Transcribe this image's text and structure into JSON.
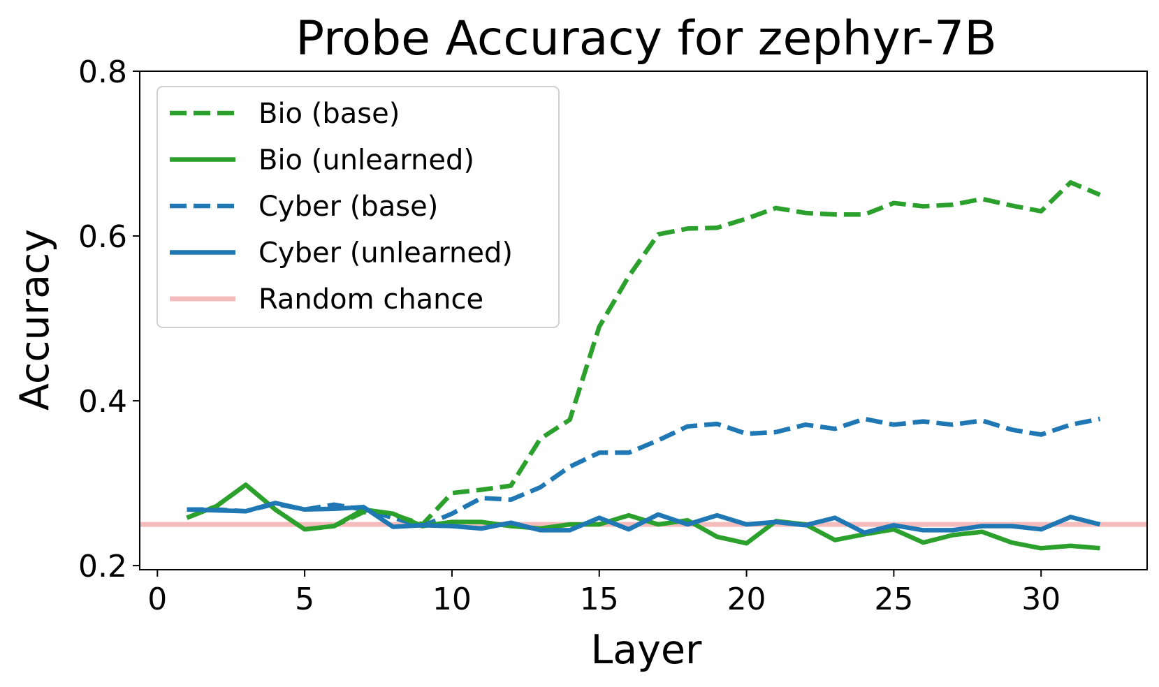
{
  "chart_data": {
    "type": "line",
    "title": "Probe Accuracy for zephyr-7B",
    "xlabel": "Layer",
    "ylabel": "Accuracy",
    "xlim": [
      -0.6,
      33.6
    ],
    "ylim": [
      0.195,
      0.8
    ],
    "xticks": [
      0,
      5,
      10,
      15,
      20,
      25,
      30
    ],
    "yticks": [
      0.2,
      0.4,
      0.6,
      0.8
    ],
    "x_tick_labels": [
      "0",
      "5",
      "10",
      "15",
      "20",
      "25",
      "30"
    ],
    "y_tick_labels": [
      "0.2",
      "0.4",
      "0.6",
      "0.8"
    ],
    "grid": false,
    "legend_position": "upper-left",
    "x": [
      1,
      2,
      3,
      4,
      5,
      6,
      7,
      8,
      9,
      10,
      11,
      12,
      13,
      14,
      15,
      16,
      17,
      18,
      19,
      20,
      21,
      22,
      23,
      24,
      25,
      26,
      27,
      28,
      29,
      30,
      31,
      32
    ],
    "series": [
      {
        "name": "Bio (base)",
        "color": "#2ca02c",
        "style": "dashed",
        "values": [
          0.258,
          0.272,
          0.298,
          0.268,
          0.244,
          0.248,
          0.265,
          0.262,
          0.25,
          0.288,
          0.292,
          0.297,
          0.354,
          0.377,
          0.49,
          0.551,
          0.602,
          0.609,
          0.61,
          0.621,
          0.634,
          0.628,
          0.626,
          0.626,
          0.64,
          0.636,
          0.638,
          0.645,
          0.637,
          0.63,
          0.665,
          0.65
        ]
      },
      {
        "name": "Bio (unlearned)",
        "color": "#2ca02c",
        "style": "solid",
        "values": [
          0.258,
          0.272,
          0.298,
          0.268,
          0.244,
          0.248,
          0.268,
          0.263,
          0.248,
          0.253,
          0.253,
          0.248,
          0.245,
          0.25,
          0.25,
          0.261,
          0.25,
          0.255,
          0.235,
          0.227,
          0.254,
          0.25,
          0.231,
          0.238,
          0.244,
          0.228,
          0.237,
          0.241,
          0.228,
          0.221,
          0.224,
          0.221
        ]
      },
      {
        "name": "Cyber (base)",
        "color": "#1f77b4",
        "style": "dashed",
        "values": [
          0.268,
          0.268,
          0.266,
          0.275,
          0.268,
          0.274,
          0.268,
          0.258,
          0.248,
          0.263,
          0.282,
          0.28,
          0.295,
          0.32,
          0.337,
          0.337,
          0.352,
          0.369,
          0.372,
          0.36,
          0.362,
          0.371,
          0.366,
          0.378,
          0.371,
          0.375,
          0.371,
          0.376,
          0.365,
          0.359,
          0.371,
          0.378
        ]
      },
      {
        "name": "Cyber (unlearned)",
        "color": "#1f77b4",
        "style": "solid",
        "values": [
          0.268,
          0.267,
          0.266,
          0.276,
          0.268,
          0.269,
          0.271,
          0.247,
          0.249,
          0.248,
          0.245,
          0.252,
          0.243,
          0.243,
          0.258,
          0.244,
          0.262,
          0.25,
          0.261,
          0.25,
          0.253,
          0.249,
          0.258,
          0.24,
          0.249,
          0.243,
          0.243,
          0.248,
          0.248,
          0.244,
          0.259,
          0.25
        ]
      },
      {
        "name": "Random chance",
        "color": "#f4bcbc",
        "style": "solid",
        "constant": 0.25
      }
    ]
  }
}
